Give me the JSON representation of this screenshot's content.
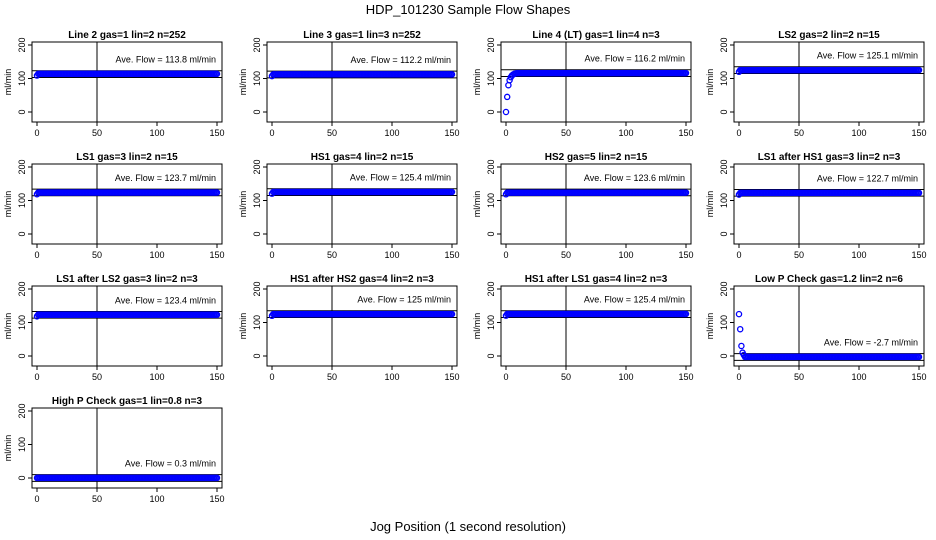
{
  "figure": {
    "title": "HDP_101230  Sample Flow Shapes",
    "xlabel": "Jog Position (1 second resolution)"
  },
  "chart_data": [
    {
      "type": "scatter",
      "title": "Line 2 gas=1 lin=2 n=252",
      "ylabel": "ml/min",
      "xlim": [
        0,
        150
      ],
      "ylim": [
        0,
        200
      ],
      "xticks": [
        0,
        50,
        100,
        150
      ],
      "yticks": [
        0,
        100,
        200
      ],
      "vline": 50,
      "hlines": [
        103,
        123
      ],
      "annotation": "Ave. Flow =  113.8  ml/min",
      "profile": {
        "kind": "flat",
        "value": 113.8
      },
      "series": [
        {
          "name": "",
          "color": "#0000ff",
          "marker": "circle"
        }
      ]
    },
    {
      "type": "scatter",
      "title": "Line 3 gas=1 lin=3 n=252",
      "ylabel": "ml/min",
      "xlim": [
        0,
        150
      ],
      "ylim": [
        0,
        200
      ],
      "xticks": [
        0,
        50,
        100,
        150
      ],
      "yticks": [
        0,
        100,
        200
      ],
      "vline": 50,
      "hlines": [
        102,
        122
      ],
      "annotation": "Ave. Flow =  112.2  ml/min",
      "profile": {
        "kind": "flat",
        "value": 112.2
      },
      "series": [
        {
          "name": "",
          "color": "#0000ff",
          "marker": "circle"
        }
      ]
    },
    {
      "type": "scatter",
      "title": "Line 4 (LT) gas=1 lin=4 n=3",
      "ylabel": "ml/min",
      "xlim": [
        0,
        150
      ],
      "ylim": [
        0,
        200
      ],
      "xticks": [
        0,
        50,
        100,
        150
      ],
      "yticks": [
        0,
        100,
        200
      ],
      "vline": 50,
      "hlines": [
        106,
        126
      ],
      "annotation": "Ave. Flow =  116.2  ml/min",
      "profile": {
        "kind": "rise",
        "value": 116.2
      },
      "series": [
        {
          "name": "",
          "color": "#0000ff",
          "marker": "circle"
        }
      ]
    },
    {
      "type": "scatter",
      "title": "LS2 gas=2 lin=2 n=15",
      "ylabel": "ml/min",
      "xlim": [
        0,
        150
      ],
      "ylim": [
        0,
        200
      ],
      "xticks": [
        0,
        50,
        100,
        150
      ],
      "yticks": [
        0,
        100,
        200
      ],
      "vline": 50,
      "hlines": [
        115,
        135
      ],
      "annotation": "Ave. Flow =  125.1  ml/min",
      "profile": {
        "kind": "flat",
        "value": 125.1
      },
      "series": [
        {
          "name": "",
          "color": "#0000ff",
          "marker": "circle"
        }
      ]
    },
    {
      "type": "scatter",
      "title": "LS1 gas=3 lin=2 n=15",
      "ylabel": "ml/min",
      "xlim": [
        0,
        150
      ],
      "ylim": [
        0,
        200
      ],
      "xticks": [
        0,
        50,
        100,
        150
      ],
      "yticks": [
        0,
        100,
        200
      ],
      "vline": 50,
      "hlines": [
        114,
        134
      ],
      "annotation": "Ave. Flow =  123.7  ml/min",
      "profile": {
        "kind": "flat",
        "value": 123.7
      },
      "series": [
        {
          "name": "",
          "color": "#0000ff",
          "marker": "circle"
        }
      ]
    },
    {
      "type": "scatter",
      "title": "HS1 gas=4 lin=2 n=15",
      "ylabel": "ml/min",
      "xlim": [
        0,
        150
      ],
      "ylim": [
        0,
        200
      ],
      "xticks": [
        0,
        50,
        100,
        150
      ],
      "yticks": [
        0,
        100,
        200
      ],
      "vline": 50,
      "hlines": [
        115,
        135
      ],
      "annotation": "Ave. Flow =  125.4  ml/min",
      "profile": {
        "kind": "flat",
        "value": 125.4
      },
      "series": [
        {
          "name": "",
          "color": "#0000ff",
          "marker": "circle"
        }
      ]
    },
    {
      "type": "scatter",
      "title": "HS2 gas=5 lin=2 n=15",
      "ylabel": "ml/min",
      "xlim": [
        0,
        150
      ],
      "ylim": [
        0,
        200
      ],
      "xticks": [
        0,
        50,
        100,
        150
      ],
      "yticks": [
        0,
        100,
        200
      ],
      "vline": 50,
      "hlines": [
        114,
        134
      ],
      "annotation": "Ave. Flow =  123.6  ml/min",
      "profile": {
        "kind": "flat",
        "value": 123.6
      },
      "series": [
        {
          "name": "",
          "color": "#0000ff",
          "marker": "circle"
        }
      ]
    },
    {
      "type": "scatter",
      "title": "LS1 after HS1 gas=3 lin=2 n=3",
      "ylabel": "ml/min",
      "xlim": [
        0,
        150
      ],
      "ylim": [
        0,
        200
      ],
      "xticks": [
        0,
        50,
        100,
        150
      ],
      "yticks": [
        0,
        100,
        200
      ],
      "vline": 50,
      "hlines": [
        113,
        133
      ],
      "annotation": "Ave. Flow =  122.7  ml/min",
      "profile": {
        "kind": "flat",
        "value": 122.7
      },
      "series": [
        {
          "name": "",
          "color": "#0000ff",
          "marker": "circle"
        }
      ]
    },
    {
      "type": "scatter",
      "title": "LS1 after LS2 gas=3 lin=2 n=3",
      "ylabel": "ml/min",
      "xlim": [
        0,
        150
      ],
      "ylim": [
        0,
        200
      ],
      "xticks": [
        0,
        50,
        100,
        150
      ],
      "yticks": [
        0,
        100,
        200
      ],
      "vline": 50,
      "hlines": [
        113,
        133
      ],
      "annotation": "Ave. Flow =  123.4  ml/min",
      "profile": {
        "kind": "flat",
        "value": 123.4
      },
      "series": [
        {
          "name": "",
          "color": "#0000ff",
          "marker": "circle"
        }
      ]
    },
    {
      "type": "scatter",
      "title": "HS1 after HS2 gas=4 lin=2 n=3",
      "ylabel": "ml/min",
      "xlim": [
        0,
        150
      ],
      "ylim": [
        0,
        200
      ],
      "xticks": [
        0,
        50,
        100,
        150
      ],
      "yticks": [
        0,
        100,
        200
      ],
      "vline": 50,
      "hlines": [
        115,
        135
      ],
      "annotation": "Ave. Flow =  125  ml/min",
      "profile": {
        "kind": "flat",
        "value": 125
      },
      "series": [
        {
          "name": "",
          "color": "#0000ff",
          "marker": "circle"
        }
      ]
    },
    {
      "type": "scatter",
      "title": "HS1 after LS1 gas=4 lin=2 n=3",
      "ylabel": "ml/min",
      "xlim": [
        0,
        150
      ],
      "ylim": [
        0,
        200
      ],
      "xticks": [
        0,
        50,
        100,
        150
      ],
      "yticks": [
        0,
        100,
        200
      ],
      "vline": 50,
      "hlines": [
        115,
        135
      ],
      "annotation": "Ave. Flow =  125.4  ml/min",
      "profile": {
        "kind": "flat",
        "value": 125.4
      },
      "series": [
        {
          "name": "",
          "color": "#0000ff",
          "marker": "circle"
        }
      ]
    },
    {
      "type": "scatter",
      "title": "Low P Check gas=1.2 lin=2 n=6",
      "ylabel": "ml/min",
      "xlim": [
        0,
        150
      ],
      "ylim": [
        0,
        200
      ],
      "xticks": [
        0,
        50,
        100,
        150
      ],
      "yticks": [
        0,
        100,
        200
      ],
      "vline": 50,
      "hlines": [
        -13,
        7
      ],
      "annotation": "Ave. Flow =  -2.7  ml/min",
      "profile": {
        "kind": "drop",
        "value": -2.7
      },
      "series": [
        {
          "name": "",
          "color": "#0000ff",
          "marker": "circle"
        }
      ]
    },
    {
      "type": "scatter",
      "title": "High P Check gas=1 lin=0.8 n=3",
      "ylabel": "ml/min",
      "xlim": [
        0,
        150
      ],
      "ylim": [
        0,
        200
      ],
      "xticks": [
        0,
        50,
        100,
        150
      ],
      "yticks": [
        0,
        100,
        200
      ],
      "vline": 50,
      "hlines": [
        -10,
        10
      ],
      "annotation": "Ave. Flow =  0.3  ml/min",
      "profile": {
        "kind": "flat",
        "value": 0.3
      },
      "series": [
        {
          "name": "",
          "color": "#0000ff",
          "marker": "circle"
        }
      ]
    }
  ]
}
